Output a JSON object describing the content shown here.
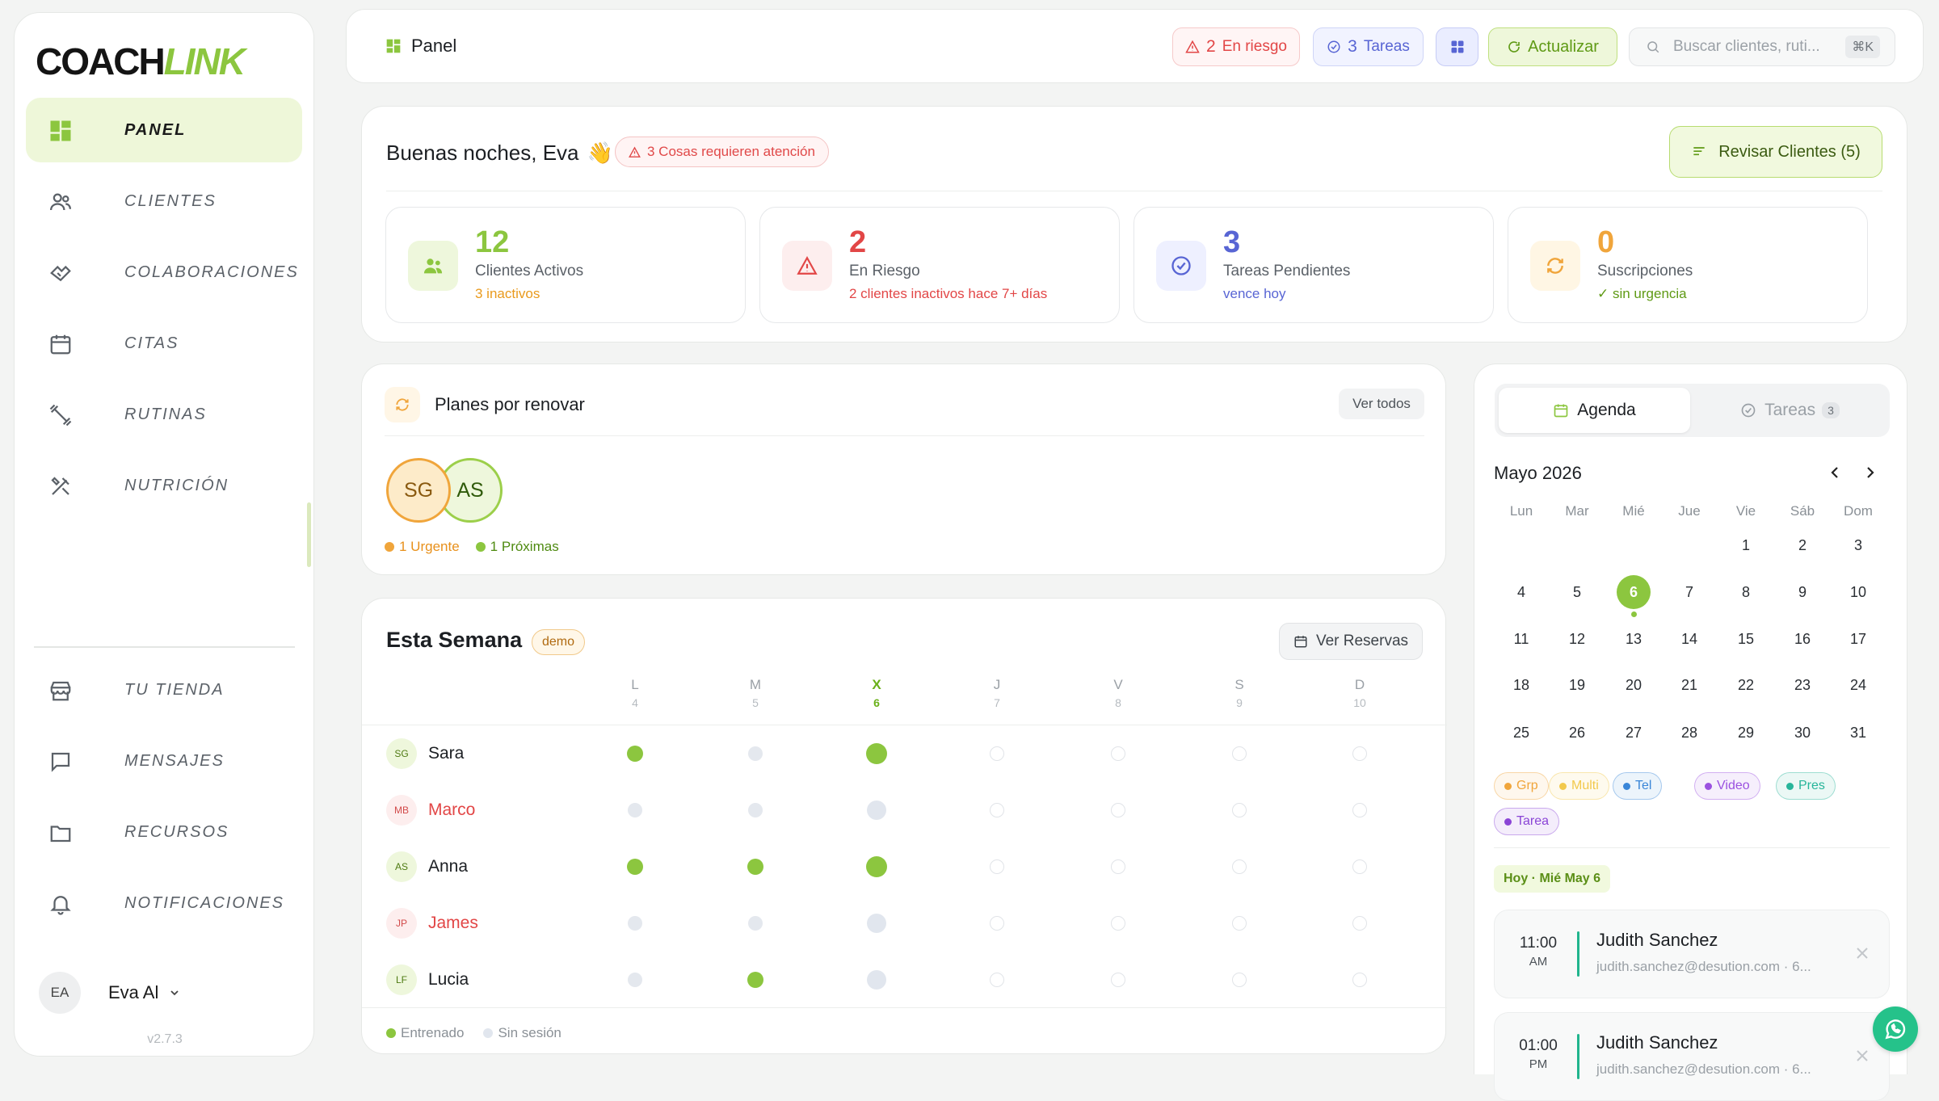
{
  "app": {
    "logo_part1": "COACH",
    "logo_part2": "LINK",
    "version": "v2.7.3"
  },
  "sidebar": {
    "items": [
      {
        "label": "PANEL",
        "icon": "dashboard-icon",
        "active": true
      },
      {
        "label": "CLIENTES",
        "icon": "users-icon"
      },
      {
        "label": "COLABORACIONES",
        "icon": "handshake-icon"
      },
      {
        "label": "CITAS",
        "icon": "calendar-icon"
      },
      {
        "label": "RUTINAS",
        "icon": "dumbbell-icon"
      },
      {
        "label": "NUTRICIÓN",
        "icon": "utensils-icon"
      }
    ],
    "bottom_items": [
      {
        "label": "TU TIENDA",
        "icon": "store-icon"
      },
      {
        "label": "MENSAJES",
        "icon": "message-icon"
      },
      {
        "label": "RECURSOS",
        "icon": "folder-icon"
      },
      {
        "label": "NOTIFICACIONES",
        "icon": "bell-icon"
      }
    ],
    "user": {
      "initials": "EA",
      "name": "Eva Al"
    }
  },
  "topbar": {
    "title": "Panel",
    "risk_count": "2",
    "risk_label": "En riesgo",
    "tasks_count": "3",
    "tasks_label": "Tareas",
    "refresh_label": "Actualizar",
    "search_placeholder": "Buscar clientes, ruti...",
    "search_shortcut": "⌘K"
  },
  "greeting": {
    "title": "Buenas noches, Eva",
    "emoji": "👋",
    "attention": "3 Cosas requieren atención",
    "review_button": "Revisar Clientes (5)"
  },
  "stats": [
    {
      "value": "12",
      "label": "Clientes Activos",
      "sub": "3 inactivos",
      "color": "#8cc63f",
      "sub_color": "#e99a1c"
    },
    {
      "value": "2",
      "label": "En Riesgo",
      "sub": "2 clientes inactivos hace 7+ días",
      "color": "#e24646",
      "sub_color": "#e24646"
    },
    {
      "value": "3",
      "label": "Tareas Pendientes",
      "sub": "vence hoy",
      "color": "#5865d4",
      "sub_color": "#5865d4"
    },
    {
      "value": "0",
      "label": "Suscripciones",
      "sub": "✓ sin urgencia",
      "color": "#f0a53b",
      "sub_color": "#5f9a15"
    }
  ],
  "renew": {
    "title": "Planes por renovar",
    "view_all": "Ver todos",
    "avatars": [
      "SG",
      "AS"
    ],
    "legend_urgent": "1 Urgente",
    "legend_next": "1 Próximas"
  },
  "week": {
    "title": "Esta Semana",
    "badge": "demo",
    "reservas_button": "Ver Reservas",
    "days": [
      {
        "letter": "L",
        "num": "4"
      },
      {
        "letter": "M",
        "num": "5"
      },
      {
        "letter": "X",
        "num": "6",
        "today": true
      },
      {
        "letter": "J",
        "num": "7"
      },
      {
        "letter": "V",
        "num": "8"
      },
      {
        "letter": "S",
        "num": "9"
      },
      {
        "letter": "D",
        "num": "10"
      }
    ],
    "clients": [
      {
        "initials": "SG",
        "name": "Sara",
        "at_risk": false,
        "days": [
          "done",
          "miss",
          "done",
          "future",
          "future",
          "future",
          "future"
        ]
      },
      {
        "initials": "MB",
        "name": "Marco",
        "at_risk": true,
        "days": [
          "miss",
          "miss",
          "miss",
          "future",
          "future",
          "future",
          "future"
        ]
      },
      {
        "initials": "AS",
        "name": "Anna",
        "at_risk": false,
        "days": [
          "done",
          "done",
          "done",
          "future",
          "future",
          "future",
          "future"
        ]
      },
      {
        "initials": "JP",
        "name": "James",
        "at_risk": true,
        "days": [
          "miss",
          "miss",
          "miss",
          "future",
          "future",
          "future",
          "future"
        ]
      },
      {
        "initials": "LF",
        "name": "Lucia",
        "at_risk": false,
        "days": [
          "miss",
          "done",
          "miss",
          "future",
          "future",
          "future",
          "future"
        ]
      }
    ],
    "legend_done": "Entrenado",
    "legend_miss": "Sin sesión"
  },
  "agenda": {
    "tab_agenda": "Agenda",
    "tab_tasks": "Tareas",
    "tasks_count": "3",
    "month": "Mayo 2026",
    "weekdays": [
      "Lun",
      "Mar",
      "Mié",
      "Jue",
      "Vie",
      "Sáb",
      "Dom"
    ],
    "today": 6,
    "types": [
      {
        "label": "Grp",
        "color": "#f0a53b"
      },
      {
        "label": "Multi",
        "color": "#f2c94c"
      },
      {
        "label": "Tel",
        "color": "#3a86d8"
      },
      {
        "label": "Video",
        "color": "#9b51e0"
      },
      {
        "label": "Pres",
        "color": "#27b59a"
      },
      {
        "label": "Tarea",
        "color": "#8a44d6"
      }
    ],
    "today_label": "Hoy · Mié May 6",
    "appointments": [
      {
        "time": "11:00",
        "ampm": "AM",
        "name": "Judith Sanchez",
        "email": "judith.sanchez@desution.com · 6..."
      },
      {
        "time": "01:00",
        "ampm": "PM",
        "name": "Judith Sanchez",
        "email": "judith.sanchez@desution.com · 6..."
      }
    ]
  }
}
